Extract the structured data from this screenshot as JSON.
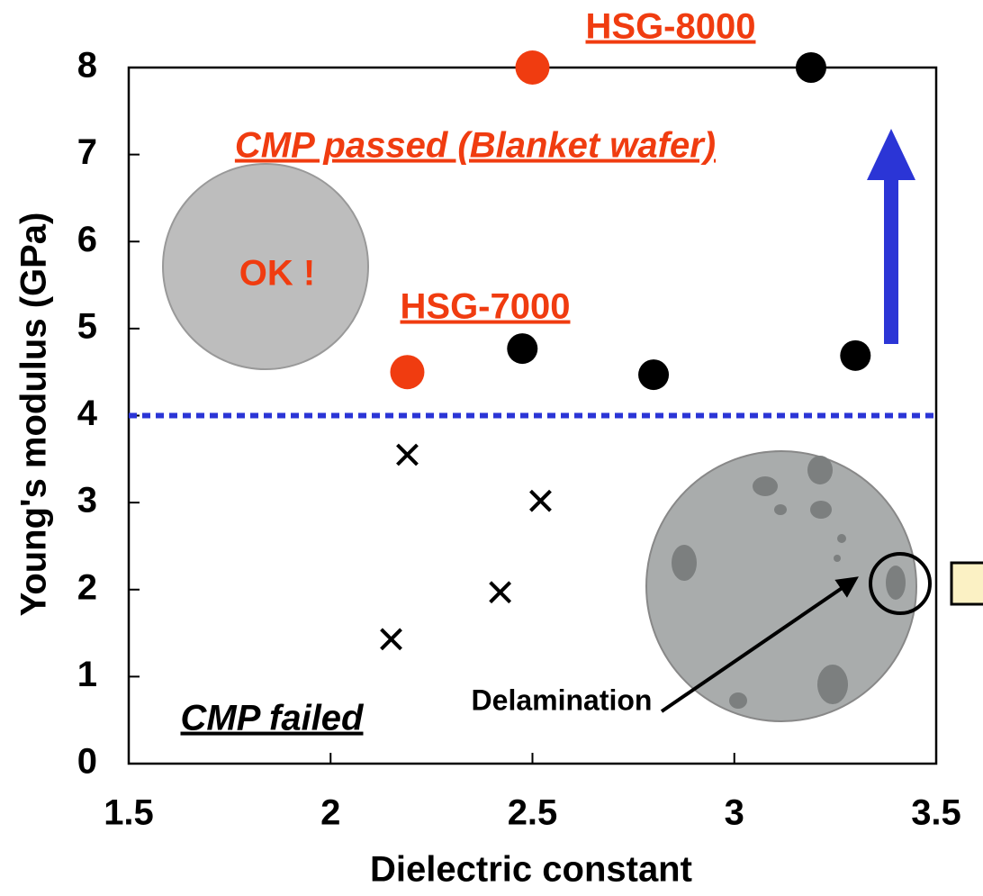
{
  "chart_data": {
    "type": "scatter",
    "x_label": "Dielectric constant",
    "y_label": "Young's modulus (GPa)",
    "xlim": [
      1.5,
      3.5
    ],
    "xticks": [
      1.5,
      2,
      2.5,
      3,
      3.5
    ],
    "ylim": [
      0,
      8
    ],
    "yticks": [
      0,
      1,
      2,
      3,
      4,
      5,
      6,
      7,
      8
    ],
    "grid": false,
    "threshold": 4,
    "series": [
      {
        "color": "#f03c10",
        "marker": "circle",
        "x": [
          2.5,
          2.19
        ],
        "values": [
          8,
          4.5
        ]
      },
      {
        "color": "#000000",
        "marker": "circle",
        "x": [
          3.19,
          2.475,
          2.8,
          3.3
        ],
        "values": [
          8,
          4.77,
          4.47,
          4.69
        ]
      },
      {
        "color": "#000000",
        "marker": "cross",
        "x": [
          2.19,
          2.52,
          2.42,
          2.15
        ],
        "values": [
          3.55,
          3.02,
          1.97,
          1.43
        ]
      }
    ],
    "annotations": [
      "HSG-8000",
      "CMP passed (Blanket wafer)",
      "OK !",
      "HSG-7000",
      "CMP failed",
      "Delamination"
    ]
  }
}
